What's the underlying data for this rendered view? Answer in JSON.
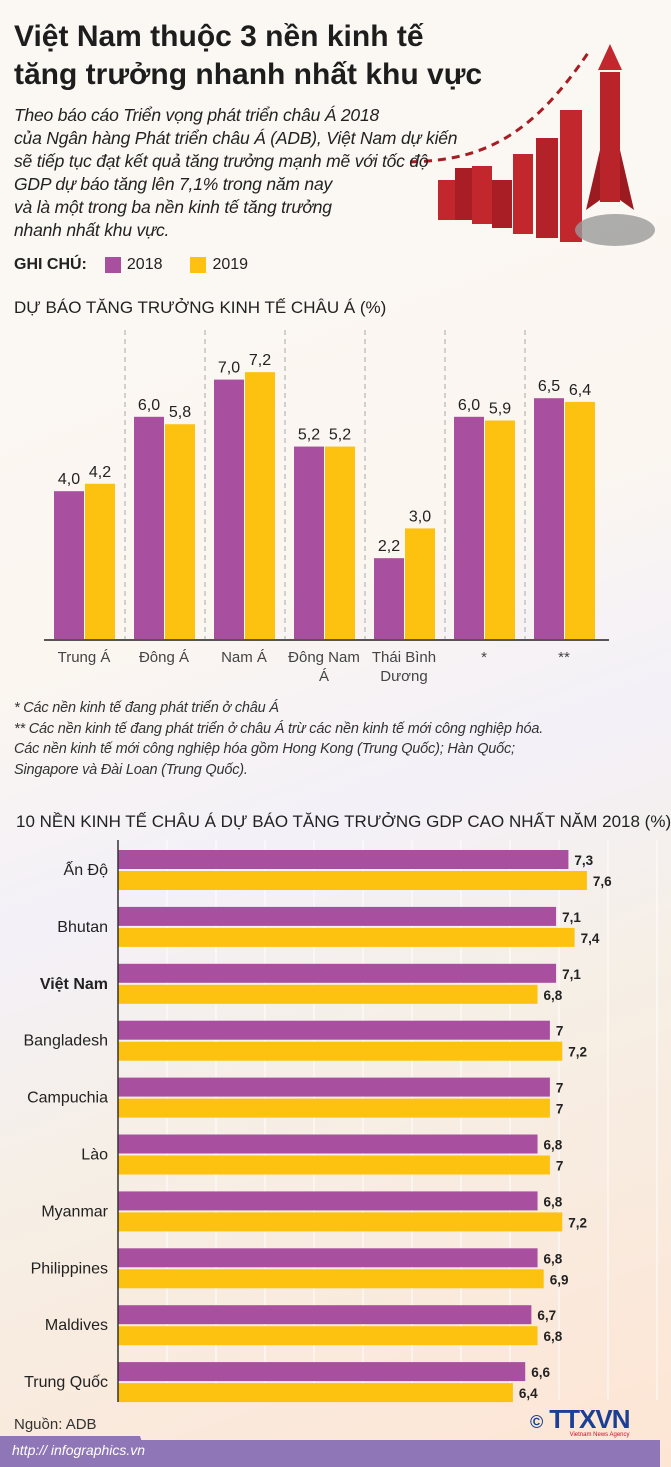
{
  "title_line1": "Việt Nam thuộc 3 nền kinh tế",
  "title_line2": "tăng trưởng nhanh nhất khu vực",
  "intro_lines": [
    "Theo báo cáo Triển vọng phát triển châu Á 2018",
    "của Ngân hàng Phát triển châu Á (ADB), Việt Nam dự kiến",
    "sẽ tiếp tục đạt kết quả tăng trưởng mạnh mẽ với tốc độ",
    "GDP dự báo tăng lên 7,1% trong năm nay",
    "và là một trong ba nền kinh tế tăng trưởng",
    "nhanh nhất khu vực."
  ],
  "legend": {
    "label": "GHI CHÚ:",
    "items": [
      "2018",
      "2019"
    ]
  },
  "colors": {
    "y2018": "#a8509f",
    "y2019": "#fdc20f",
    "footer": "#8f76b6"
  },
  "chart_data": [
    {
      "type": "bar",
      "title": "DỰ BÁO TĂNG TRƯỞNG KINH TẾ CHÂU Á (%)",
      "categories": [
        "Trung Á",
        "Đông Á",
        "Nam Á",
        "Đông Nam Á",
        "Thái Bình Dương",
        "*",
        "**"
      ],
      "series": [
        {
          "name": "2018",
          "values": [
            4.0,
            6.0,
            7.0,
            5.2,
            2.2,
            6.0,
            6.5
          ],
          "labels": [
            "4,0",
            "6,0",
            "7,0",
            "5,2",
            "2,2",
            "6,0",
            "6,5"
          ]
        },
        {
          "name": "2019",
          "values": [
            4.2,
            5.8,
            7.2,
            5.2,
            3.0,
            5.9,
            6.4
          ],
          "labels": [
            "4,2",
            "5,8",
            "7,2",
            "5,2",
            "3,0",
            "5,9",
            "6,4"
          ]
        }
      ],
      "ylim": [
        0,
        8
      ]
    },
    {
      "type": "bar",
      "orientation": "horizontal",
      "title": "10 NỀN KINH TẾ CHÂU Á DỰ BÁO TĂNG TRƯỞNG GDP CAO NHẤT NĂM 2018 (%)",
      "categories": [
        "Ấn Độ",
        "Bhutan",
        "Việt Nam",
        "Bangladesh",
        "Campuchia",
        "Lào",
        "Myanmar",
        "Philippines",
        "Maldives",
        "Trung Quốc"
      ],
      "highlight": "Việt Nam",
      "series": [
        {
          "name": "2018",
          "values": [
            7.3,
            7.1,
            7.1,
            7,
            7,
            6.8,
            6.8,
            6.8,
            6.7,
            6.6
          ],
          "labels": [
            "7,3",
            "7,1",
            "7,1",
            "7",
            "7",
            "6,8",
            "6,8",
            "6,8",
            "6,7",
            "6,6"
          ]
        },
        {
          "name": "2019",
          "values": [
            7.6,
            7.4,
            6.8,
            7.2,
            7,
            7,
            7.2,
            6.9,
            6.8,
            6.4
          ],
          "labels": [
            "7,6",
            "7,4",
            "6,8",
            "7,2",
            "7",
            "7",
            "7,2",
            "6,9",
            "6,8",
            "6,4"
          ]
        }
      ],
      "xlim": [
        0,
        8.8
      ]
    }
  ],
  "notes": [
    "* Các nền kinh tế đang phát triển ở châu Á",
    "** Các nền kinh tế đang phát triển ở châu Á trừ các nền kinh tế mới công nghiệp hóa.",
    "Các nền kinh tế mới công nghiệp hóa gồm Hong Kong (Trung Quốc); Hàn Quốc;",
    "Singapore và Đài Loan (Trung Quốc)."
  ],
  "source": "Nguồn: ADB",
  "url": "http:// infographics.vn",
  "logo": {
    "copyright": "©",
    "name": "TTXVN",
    "tagline": "Vietnam News Agency"
  }
}
